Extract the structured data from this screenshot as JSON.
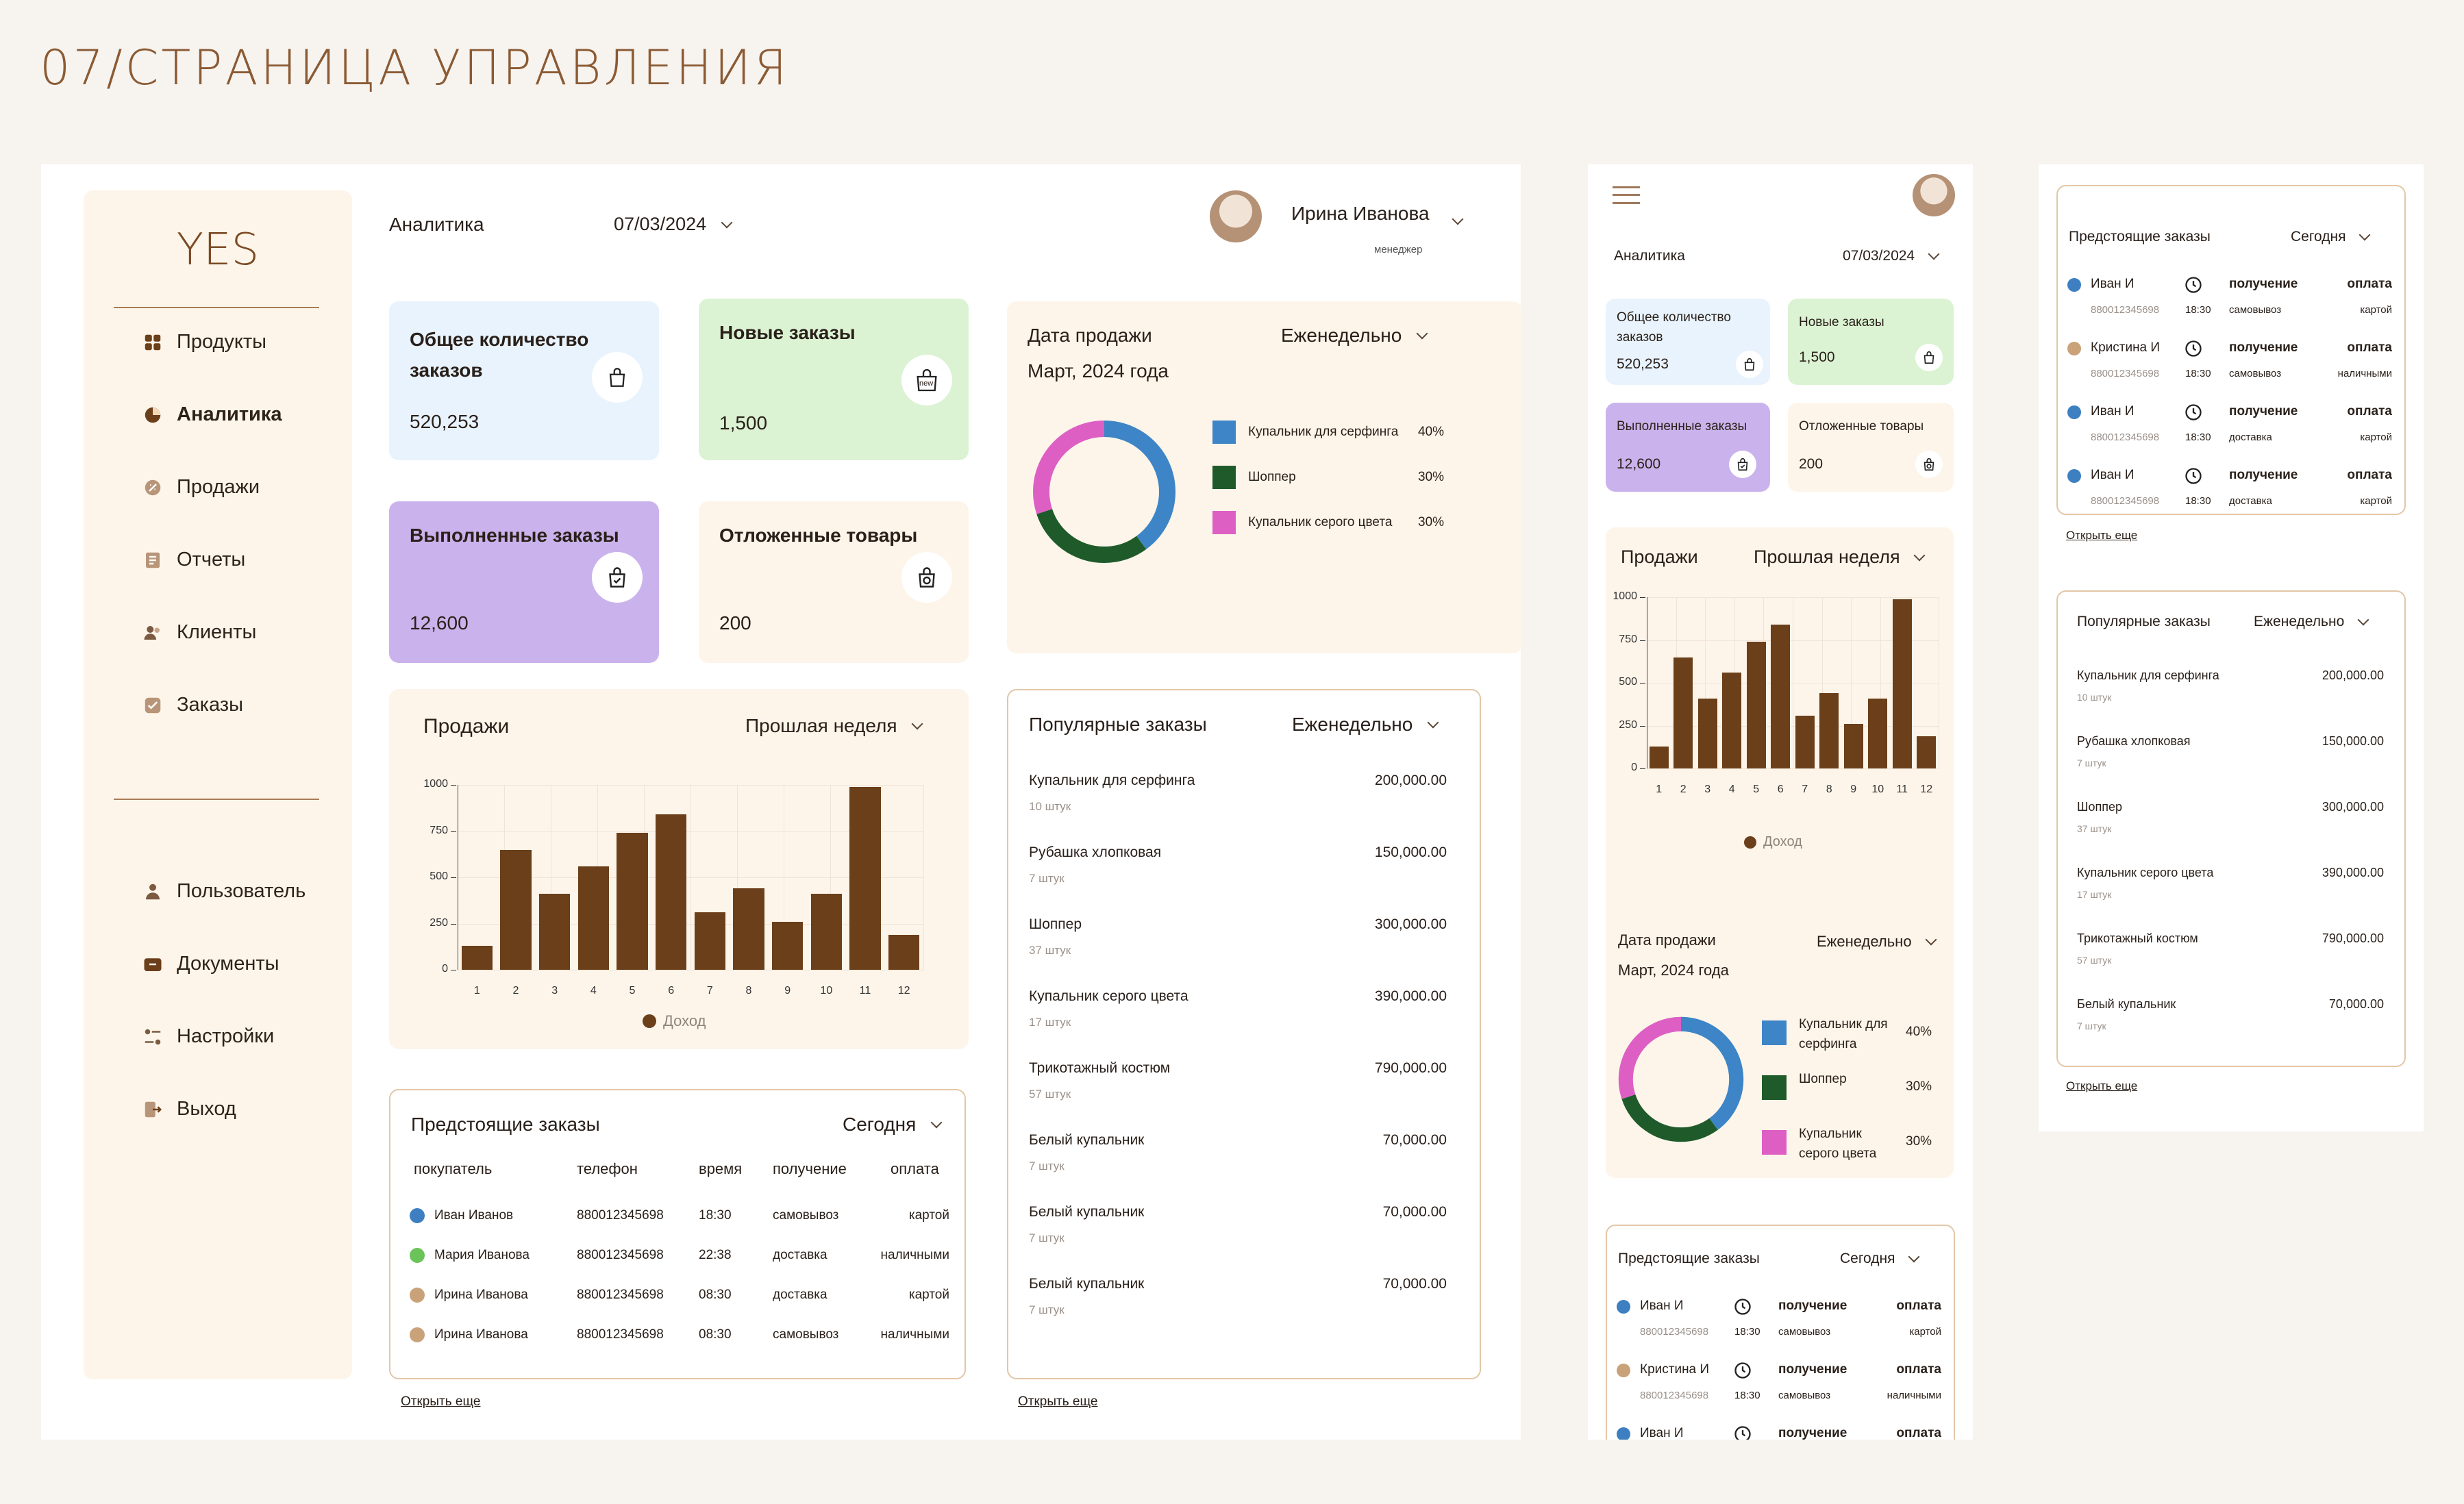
{
  "page_title": "07/СТРАНИЦА УПРАВЛЕНИЯ",
  "colors": {
    "brown": "#6b3f1a",
    "beige": "#fdf5ea",
    "blue": "#e8f3fd",
    "green": "#dbf3d3",
    "purple": "#cab3ec",
    "donut_blue": "#3d85c6",
    "donut_green": "#1f5b2a",
    "donut_pink": "#de5fc4"
  },
  "brand": {
    "logo": "YES"
  },
  "sidebar": {
    "items": [
      {
        "label": "Продукты",
        "icon": "grid-icon"
      },
      {
        "label": "Аналитика",
        "icon": "pie-icon"
      },
      {
        "label": "Продажи",
        "icon": "tag-icon"
      },
      {
        "label": "Отчеты",
        "icon": "report-icon"
      },
      {
        "label": "Клиенты",
        "icon": "clients-icon"
      },
      {
        "label": "Заказы",
        "icon": "orders-icon"
      }
    ],
    "bottom": [
      {
        "label": "Пользователь"
      },
      {
        "label": "Документы"
      },
      {
        "label": "Настройки"
      },
      {
        "label": "Выход"
      }
    ]
  },
  "header": {
    "section": "Аналитика",
    "date": "07/03/2024",
    "user_name": "Ирина Иванова",
    "user_role": "менеджер"
  },
  "stats": [
    {
      "label": "Общее количество заказов",
      "value": "520,253"
    },
    {
      "label": "Новые заказы",
      "value": "1,500",
      "badge": "new"
    },
    {
      "label": "Выполненные заказы",
      "value": "12,600"
    },
    {
      "label": "Отложенные товары",
      "value": "200"
    }
  ],
  "donut": {
    "title": "Дата продажи",
    "period": "Еженедельно",
    "subtitle": "Март, 2024 года",
    "legend": [
      {
        "name": "Купальник для серфинга",
        "pct": "40%"
      },
      {
        "name": "Шоппер",
        "pct": "30%"
      },
      {
        "name": "Купальник серого цвета",
        "pct": "30%"
      }
    ]
  },
  "sales": {
    "title": "Продажи",
    "period": "Прошлая неделя",
    "legend": "Доход"
  },
  "chart_data": {
    "type": "bar",
    "title": "Продажи",
    "xlabel": "",
    "ylabel": "",
    "categories": [
      "1",
      "2",
      "3",
      "4",
      "5",
      "6",
      "7",
      "8",
      "9",
      "10",
      "11",
      "12"
    ],
    "values": [
      130,
      650,
      410,
      560,
      740,
      840,
      310,
      440,
      260,
      410,
      990,
      190
    ],
    "ylim": [
      0,
      1000
    ],
    "yticks": [
      "0",
      "250",
      "500",
      "750",
      "1000"
    ],
    "legend": [
      "Доход"
    ]
  },
  "upcoming": {
    "title": "Предстоящие заказы",
    "period": "Сегодня",
    "headers": [
      "покупатель",
      "телефон",
      "время",
      "получение",
      "оплата"
    ],
    "rows": [
      {
        "name": "Иван Иванов",
        "phone": "880012345698",
        "time": "18:30",
        "delivery": "самовывоз",
        "pay": "картой",
        "color": "#3d7fc0"
      },
      {
        "name": "Мария Иванова",
        "phone": "880012345698",
        "time": "22:38",
        "delivery": "доставка",
        "pay": "наличными",
        "color": "#6cc35a"
      },
      {
        "name": "Ирина Иванова",
        "phone": "880012345698",
        "time": "08:30",
        "delivery": "доставка",
        "pay": "картой",
        "color": "#c9a27a"
      },
      {
        "name": "Ирина Иванова",
        "phone": "880012345698",
        "time": "08:30",
        "delivery": "самовывоз",
        "pay": "наличными",
        "color": "#c9a27a"
      }
    ],
    "more": "Открыть еще"
  },
  "popular": {
    "title": "Популярные заказы",
    "period": "Еженедельно",
    "items": [
      {
        "name": "Купальник для серфинга",
        "qty": "10 штук",
        "price": "200,000.00"
      },
      {
        "name": "Рубашка хлопковая",
        "qty": "7 штук",
        "price": "150,000.00"
      },
      {
        "name": "Шоппер",
        "qty": "37 штук",
        "price": "300,000.00"
      },
      {
        "name": "Купальник серого цвета",
        "qty": "17 штук",
        "price": "390,000.00"
      },
      {
        "name": "Трикотажный костюм",
        "qty": "57 штук",
        "price": "790,000.00"
      },
      {
        "name": "Белый купальник",
        "qty": "7 штук",
        "price": "70,000.00"
      },
      {
        "name": "Белый купальник",
        "qty": "7 штук",
        "price": "70,000.00"
      },
      {
        "name": "Белый купальник",
        "qty": "7 штук",
        "price": "70,000.00"
      }
    ],
    "more": "Открыть еще"
  },
  "mobile": {
    "section": "Аналитика",
    "date": "07/03/2024",
    "donut_legend": [
      {
        "name": "Купальник для серфинга",
        "pct": "40%"
      },
      {
        "name": "Шоппер",
        "pct": "30%"
      },
      {
        "name": "Купальник серого цвета",
        "pct": "30%"
      }
    ],
    "upcoming_rows": [
      {
        "name": "Иван И",
        "phone": "880012345698",
        "time": "18:30",
        "delivery": "самовывоз",
        "pay": "картой",
        "color": "#3d7fc0"
      },
      {
        "name": "Кристина И",
        "phone": "880012345698",
        "time": "18:30",
        "delivery": "самовывоз",
        "pay": "наличными",
        "color": "#c9a27a"
      },
      {
        "name": "Иван И",
        "phone": "880012345698",
        "time": "18:30",
        "delivery": "доставка",
        "pay": "картой",
        "color": "#3d7fc0"
      },
      {
        "name": "Иван И",
        "phone": "880012345698",
        "time": "18:30",
        "delivery": "доставка",
        "pay": "картой",
        "color": "#3d7fc0"
      }
    ],
    "col_delivery": "получение",
    "col_pay": "оплата",
    "popular_items": [
      {
        "name": "Купальник для серфинга",
        "qty": "10 штук",
        "price": "200,000.00"
      },
      {
        "name": "Рубашка хлопковая",
        "qty": "7 штук",
        "price": "150,000.00"
      },
      {
        "name": "Шоппер",
        "qty": "37 штук",
        "price": "300,000.00"
      },
      {
        "name": "Купальник серого цвета",
        "qty": "17 штук",
        "price": "390,000.00"
      },
      {
        "name": "Трикотажный костюм",
        "qty": "57 штук",
        "price": "790,000.00"
      },
      {
        "name": "Белый купальник",
        "qty": "7 штук",
        "price": "70,000.00"
      }
    ]
  }
}
